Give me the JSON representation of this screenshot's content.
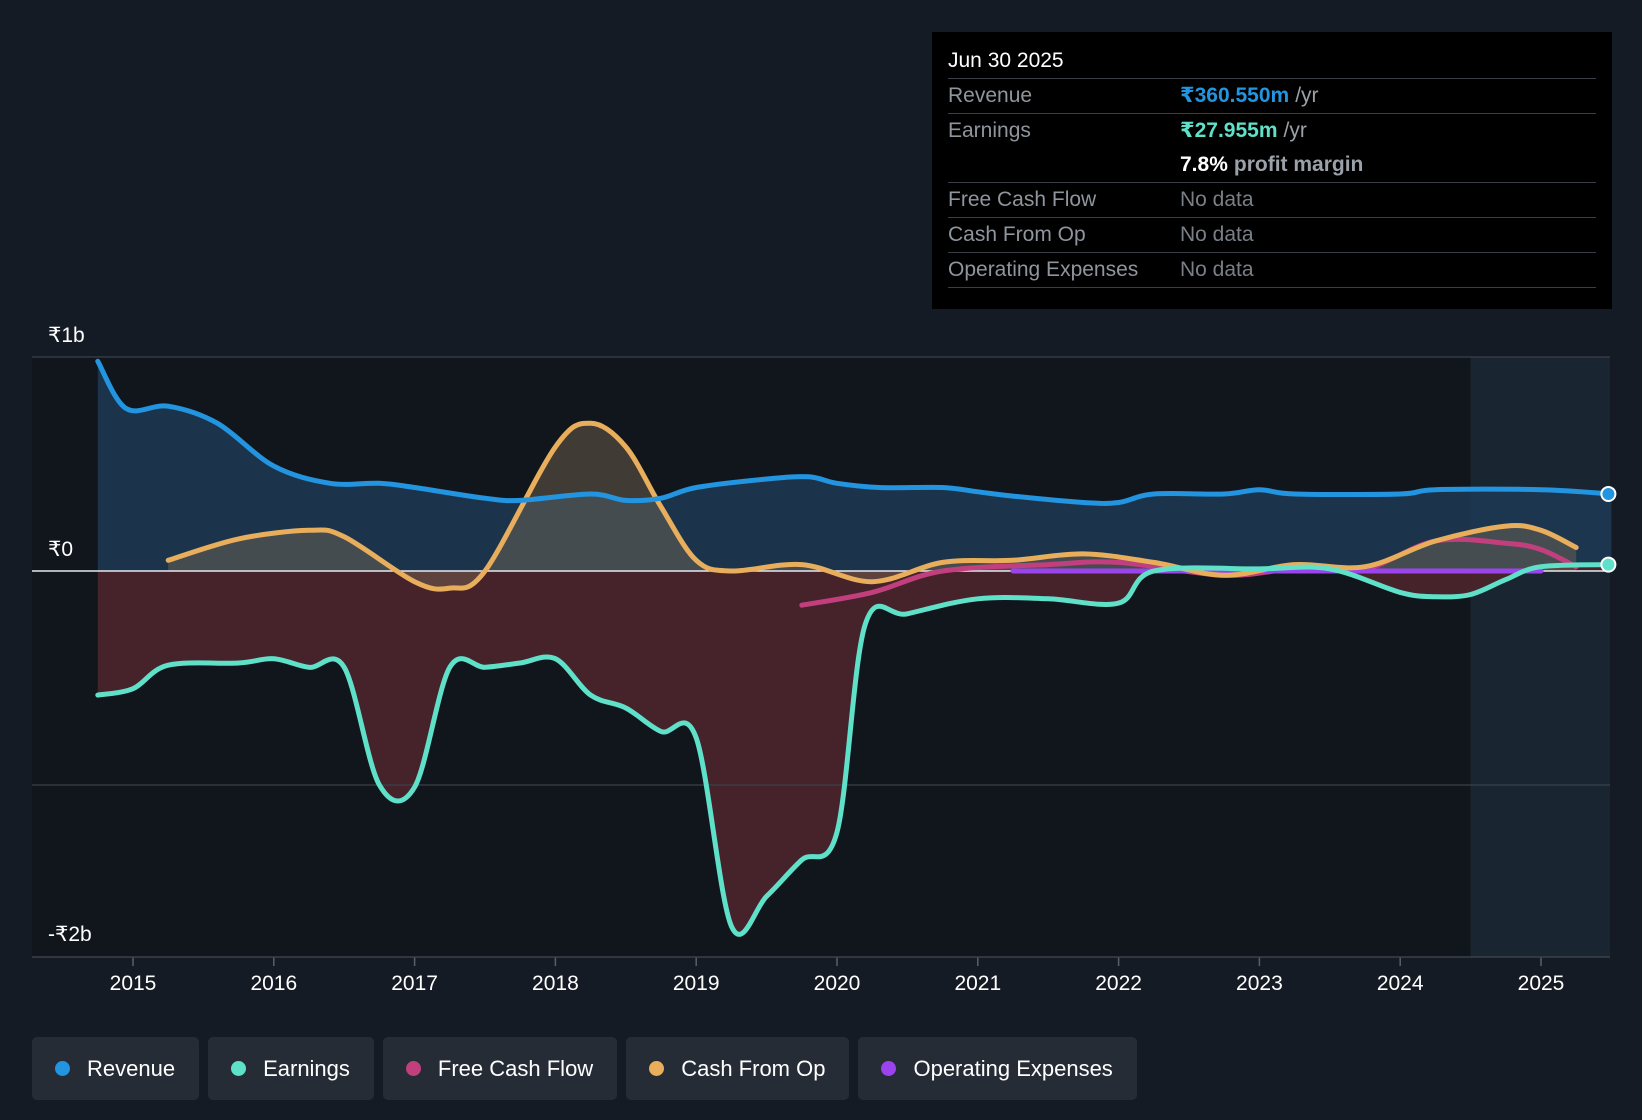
{
  "colors": {
    "revenue": "#2394df",
    "earnings": "#5fe0c9",
    "fcf": "#c23f7e",
    "cfo": "#e8ae5c",
    "opex": "#9b44ee",
    "background": "#151b24"
  },
  "tooltip": {
    "date": "Jun 30 2025",
    "rows": [
      {
        "label": "Revenue",
        "value": "₹360.550m",
        "unit": "/yr"
      },
      {
        "label": "Earnings",
        "value": "₹27.955m",
        "unit": "/yr"
      },
      {
        "label": "",
        "value": "7.8%",
        "unit": "profit margin"
      },
      {
        "label": "Free Cash Flow",
        "value": "No data",
        "unit": ""
      },
      {
        "label": "Cash From Op",
        "value": "No data",
        "unit": ""
      },
      {
        "label": "Operating Expenses",
        "value": "No data",
        "unit": ""
      }
    ]
  },
  "legend": [
    {
      "name": "Revenue",
      "color": "#2394df"
    },
    {
      "name": "Earnings",
      "color": "#5fe0c9"
    },
    {
      "name": "Free Cash Flow",
      "color": "#c23f7e"
    },
    {
      "name": "Cash From Op",
      "color": "#e8ae5c"
    },
    {
      "name": "Operating Expenses",
      "color": "#9b44ee"
    }
  ],
  "chart_data": {
    "type": "line",
    "title": "",
    "xlabel": "",
    "ylabel": "",
    "unit": "INR billions",
    "xlim": [
      2014.27,
      2025.5
    ],
    "ylim": [
      -1.8,
      1.0
    ],
    "y_tick_labels": [
      {
        "value": 1.0,
        "label": "₹1b"
      },
      {
        "value": 0,
        "label": "₹0"
      },
      {
        "value": -1.8,
        "label": "-₹2b"
      }
    ],
    "x_ticks": [
      2015,
      2016,
      2017,
      2018,
      2019,
      2020,
      2021,
      2022,
      2023,
      2024,
      2025
    ],
    "x_tick_labels": [
      "2015",
      "2016",
      "2017",
      "2018",
      "2019",
      "2020",
      "2021",
      "2022",
      "2023",
      "2024",
      "2025"
    ],
    "gridlines": [
      1.0,
      0,
      -1.0
    ],
    "forecast_region_start": 2024.5,
    "series": [
      {
        "name": "Revenue",
        "color": "#2394df",
        "points": [
          [
            2014.75,
            0.98
          ],
          [
            2014.95,
            0.76
          ],
          [
            2015.25,
            0.77
          ],
          [
            2015.6,
            0.69
          ],
          [
            2016.0,
            0.49
          ],
          [
            2016.4,
            0.41
          ],
          [
            2016.75,
            0.41
          ],
          [
            2017.0,
            0.39
          ],
          [
            2017.5,
            0.34
          ],
          [
            2017.75,
            0.33
          ],
          [
            2018.25,
            0.36
          ],
          [
            2018.5,
            0.33
          ],
          [
            2018.75,
            0.34
          ],
          [
            2019.0,
            0.39
          ],
          [
            2019.5,
            0.43
          ],
          [
            2019.8,
            0.44
          ],
          [
            2020.0,
            0.41
          ],
          [
            2020.3,
            0.39
          ],
          [
            2020.75,
            0.39
          ],
          [
            2021.0,
            0.37
          ],
          [
            2021.25,
            0.35
          ],
          [
            2021.75,
            0.32
          ],
          [
            2022.0,
            0.32
          ],
          [
            2022.25,
            0.36
          ],
          [
            2022.75,
            0.36
          ],
          [
            2023.0,
            0.38
          ],
          [
            2023.25,
            0.36
          ],
          [
            2024.0,
            0.36
          ],
          [
            2024.25,
            0.38
          ],
          [
            2025.0,
            0.38
          ],
          [
            2025.5,
            0.36
          ]
        ]
      },
      {
        "name": "Earnings",
        "color": "#5fe0c9",
        "points": [
          [
            2014.75,
            -0.58
          ],
          [
            2015.0,
            -0.55
          ],
          [
            2015.25,
            -0.44
          ],
          [
            2015.75,
            -0.43
          ],
          [
            2016.0,
            -0.41
          ],
          [
            2016.25,
            -0.45
          ],
          [
            2016.5,
            -0.45
          ],
          [
            2016.75,
            -1.0
          ],
          [
            2017.0,
            -1.01
          ],
          [
            2017.25,
            -0.45
          ],
          [
            2017.5,
            -0.45
          ],
          [
            2017.75,
            -0.43
          ],
          [
            2018.0,
            -0.41
          ],
          [
            2018.25,
            -0.58
          ],
          [
            2018.5,
            -0.64
          ],
          [
            2018.75,
            -0.75
          ],
          [
            2019.0,
            -0.78
          ],
          [
            2019.25,
            -1.66
          ],
          [
            2019.5,
            -1.52
          ],
          [
            2019.75,
            -1.35
          ],
          [
            2020.0,
            -1.22
          ],
          [
            2020.2,
            -0.25
          ],
          [
            2020.5,
            -0.2
          ],
          [
            2021.0,
            -0.13
          ],
          [
            2021.5,
            -0.13
          ],
          [
            2022.0,
            -0.15
          ],
          [
            2022.25,
            0.0
          ],
          [
            2023.0,
            0.01
          ],
          [
            2023.5,
            0.01
          ],
          [
            2024.0,
            -0.1
          ],
          [
            2024.25,
            -0.12
          ],
          [
            2024.5,
            -0.11
          ],
          [
            2024.75,
            -0.04
          ],
          [
            2025.0,
            0.02
          ],
          [
            2025.5,
            0.03
          ]
        ]
      },
      {
        "name": "Free Cash Flow",
        "color": "#c23f7e",
        "points": [
          [
            2019.75,
            -0.16
          ],
          [
            2020.25,
            -0.1
          ],
          [
            2020.75,
            0.0
          ],
          [
            2021.5,
            0.03
          ],
          [
            2022.0,
            0.04
          ],
          [
            2022.75,
            -0.02
          ],
          [
            2023.25,
            0.01
          ],
          [
            2023.75,
            0.01
          ],
          [
            2024.25,
            0.14
          ],
          [
            2024.75,
            0.13
          ],
          [
            2025.0,
            0.1
          ],
          [
            2025.25,
            0.02
          ]
        ]
      },
      {
        "name": "Cash From Op",
        "color": "#e8ae5c",
        "points": [
          [
            2015.25,
            0.05
          ],
          [
            2015.75,
            0.15
          ],
          [
            2016.25,
            0.19
          ],
          [
            2016.5,
            0.16
          ],
          [
            2017.0,
            -0.05
          ],
          [
            2017.25,
            -0.08
          ],
          [
            2017.5,
            0.0
          ],
          [
            2018.0,
            0.58
          ],
          [
            2018.25,
            0.69
          ],
          [
            2018.5,
            0.58
          ],
          [
            2018.75,
            0.3
          ],
          [
            2019.0,
            0.05
          ],
          [
            2019.25,
            0.0
          ],
          [
            2019.75,
            0.03
          ],
          [
            2020.25,
            -0.05
          ],
          [
            2020.75,
            0.04
          ],
          [
            2021.25,
            0.05
          ],
          [
            2021.75,
            0.08
          ],
          [
            2022.25,
            0.04
          ],
          [
            2022.75,
            -0.02
          ],
          [
            2023.25,
            0.03
          ],
          [
            2023.75,
            0.02
          ],
          [
            2024.25,
            0.14
          ],
          [
            2024.75,
            0.21
          ],
          [
            2025.0,
            0.19
          ],
          [
            2025.25,
            0.11
          ]
        ]
      },
      {
        "name": "Operating Expenses",
        "color": "#9b44ee",
        "points": [
          [
            2021.25,
            0.0
          ],
          [
            2022.0,
            0.0
          ],
          [
            2023.0,
            0.0
          ],
          [
            2024.0,
            0.0
          ],
          [
            2025.0,
            0.0
          ]
        ]
      }
    ]
  }
}
